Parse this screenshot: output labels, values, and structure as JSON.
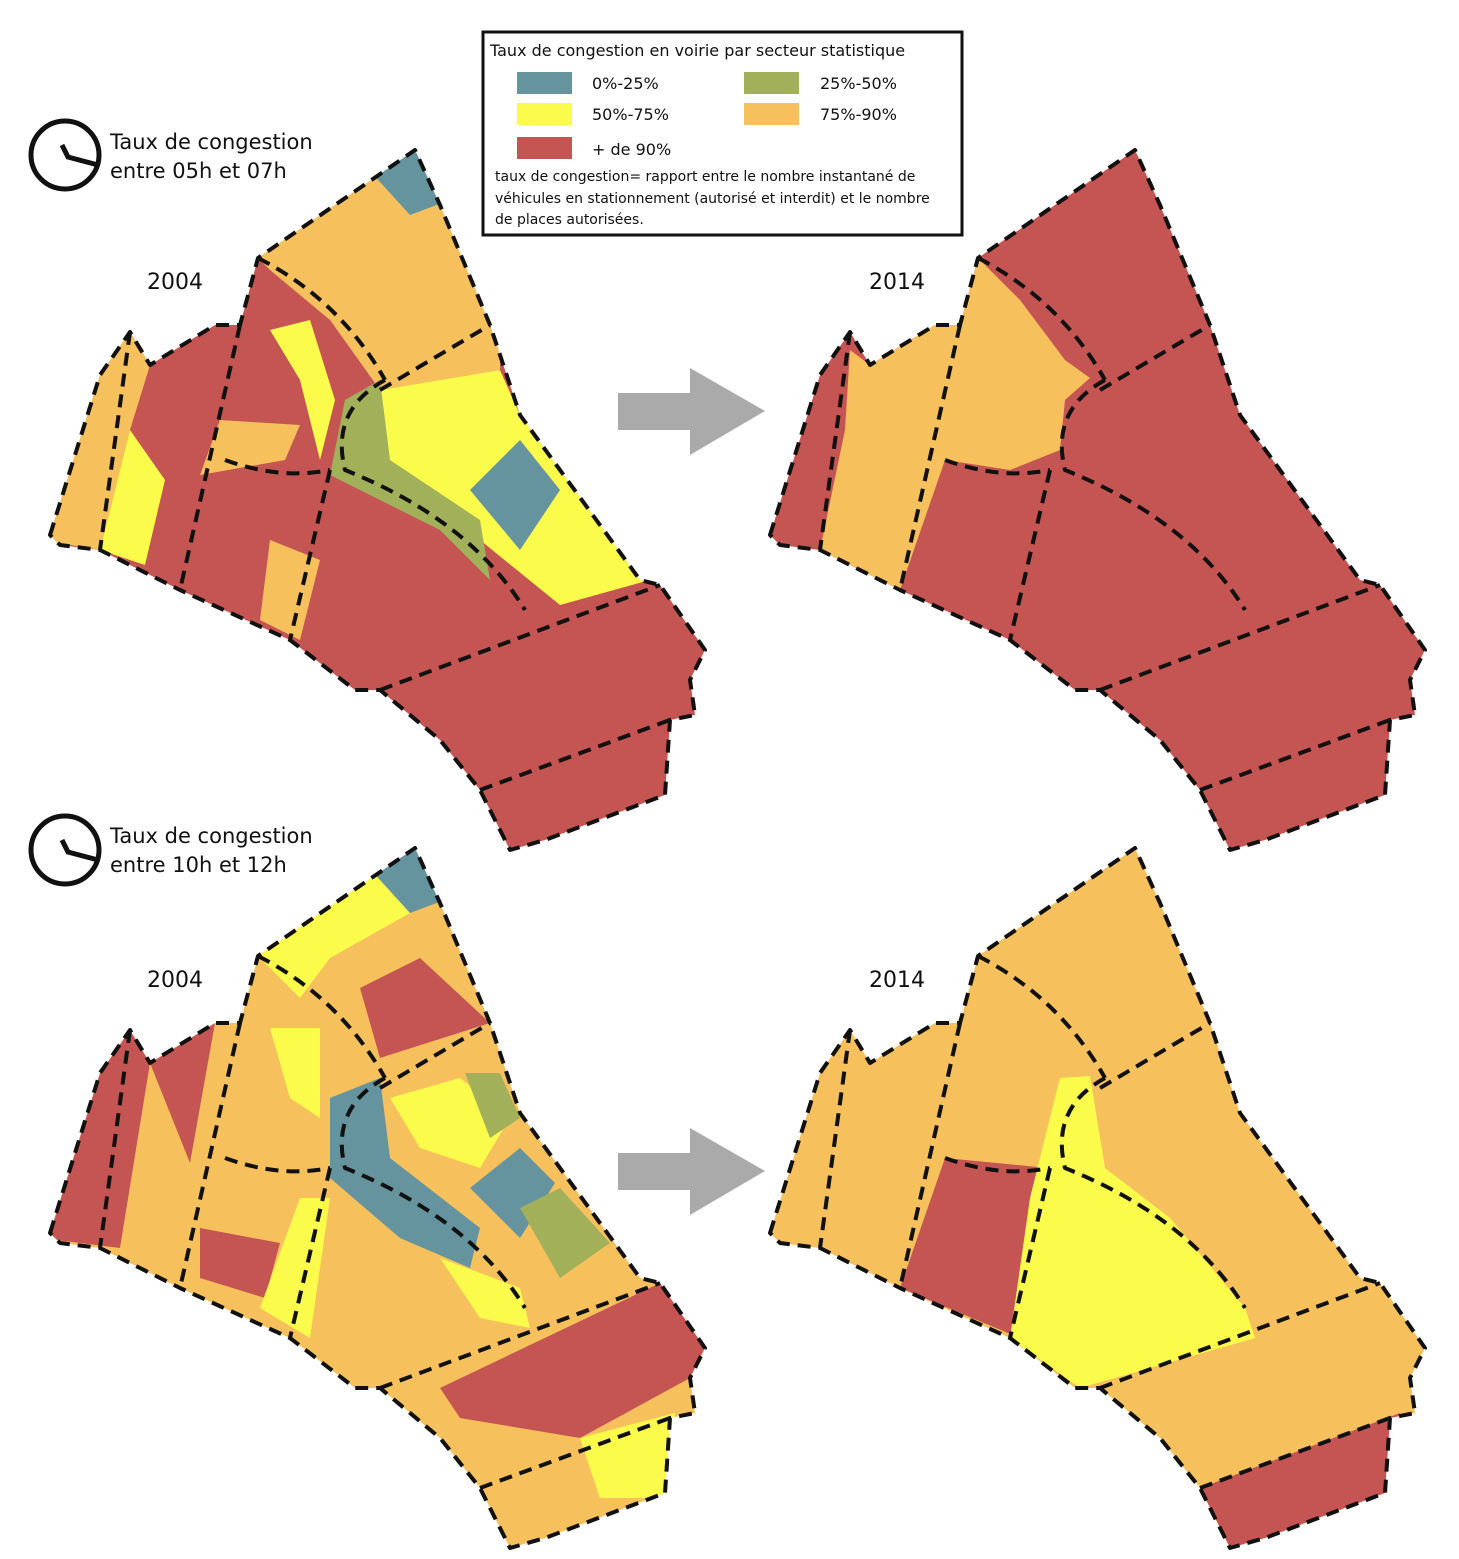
{
  "legend": {
    "title": "Taux de congestion en voirie par secteur statistique",
    "items": [
      {
        "label": "0%-25%",
        "color": "#65949f"
      },
      {
        "label": "25%-50%",
        "color": "#a3b05a"
      },
      {
        "label": "50%-75%",
        "color": "#fbfb4c"
      },
      {
        "label": "75%-90%",
        "color": "#f6c05d"
      },
      {
        "label": "+ de 90%",
        "color": "#c45553"
      }
    ],
    "note": [
      "taux de congestion= rapport entre le nombre instantané de",
      "véhicules en stationnement (autorisé et interdit) et le nombre",
      "de places autorisées."
    ]
  },
  "panels": [
    {
      "caption": [
        "Taux de congestion",
        "entre 05h et 07h"
      ],
      "maps": [
        {
          "year": "2004"
        },
        {
          "year": "2014"
        }
      ]
    },
    {
      "caption": [
        "Taux de congestion",
        "entre 10h et 12h"
      ],
      "maps": [
        {
          "year": "2004"
        },
        {
          "year": "2014"
        }
      ]
    }
  ]
}
